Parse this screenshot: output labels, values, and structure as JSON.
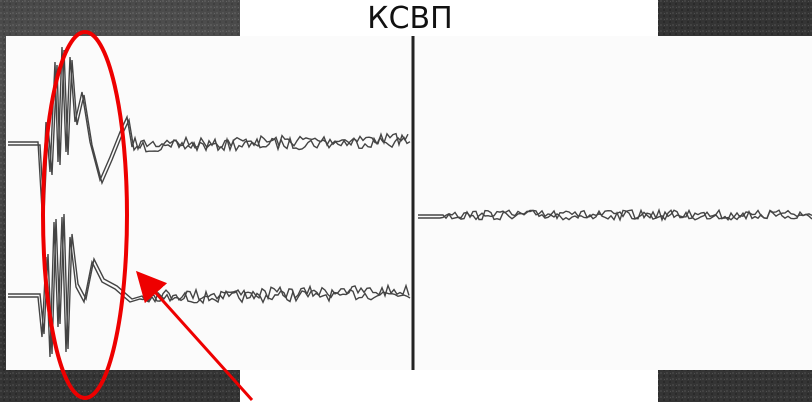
{
  "title": "КСВП"
}
